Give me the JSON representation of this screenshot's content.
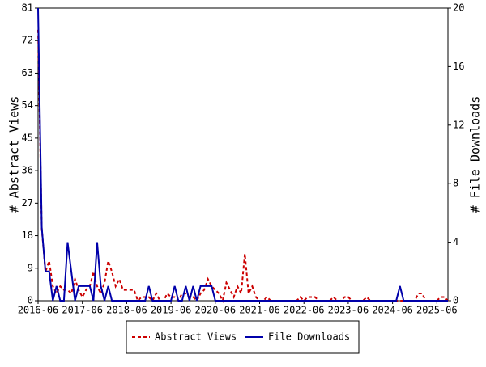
{
  "chart_data": {
    "type": "line",
    "categories": [
      "2016-06",
      null,
      null,
      null,
      null,
      null,
      null,
      null,
      null,
      null,
      null,
      null,
      "2017-06",
      null,
      null,
      null,
      null,
      null,
      null,
      null,
      null,
      null,
      null,
      null,
      "2018-06",
      null,
      null,
      null,
      null,
      null,
      null,
      null,
      null,
      null,
      null,
      null,
      "2019-06",
      null,
      null,
      null,
      null,
      null,
      null,
      null,
      null,
      null,
      null,
      null,
      "2020-06",
      null,
      null,
      null,
      null,
      null,
      null,
      null,
      null,
      null,
      null,
      null,
      "2021-06",
      null,
      null,
      null,
      null,
      null,
      null,
      null,
      null,
      null,
      null,
      null,
      "2022-06",
      null,
      null,
      null,
      null,
      null,
      null,
      null,
      null,
      null,
      null,
      null,
      "2023-06",
      null,
      null,
      null,
      null,
      null,
      null,
      null,
      null,
      null,
      null,
      null,
      "2024-06",
      null,
      null,
      null,
      null,
      null,
      null,
      null,
      null,
      null,
      null,
      null,
      "2025-06",
      null,
      null,
      null
    ],
    "series": [
      {
        "name": "Abstract Views",
        "color": "#cc0000",
        "dash": true,
        "values": [
          75,
          20,
          8,
          11,
          4,
          2,
          4,
          3,
          3,
          2,
          6,
          3,
          1,
          3,
          4,
          8,
          4,
          2,
          5,
          11,
          8,
          4,
          6,
          3,
          3,
          3,
          3,
          0,
          1,
          1,
          1,
          0,
          2,
          0,
          0,
          2,
          1,
          1,
          0,
          2,
          2,
          1,
          1,
          0,
          2,
          3,
          6,
          4,
          3,
          2,
          0,
          5,
          3,
          1,
          4,
          2,
          13,
          2,
          4,
          1,
          0,
          0,
          1,
          0,
          0,
          0,
          0,
          0,
          0,
          0,
          0,
          1,
          0,
          1,
          1,
          1,
          0,
          0,
          0,
          0,
          1,
          0,
          0,
          1,
          1,
          0,
          0,
          0,
          0,
          1,
          0,
          0,
          0,
          0,
          0,
          0,
          0,
          0,
          0,
          0,
          0,
          0,
          0,
          2,
          2,
          0,
          0,
          0,
          0,
          1,
          1,
          0
        ]
      },
      {
        "name": "File Downloads",
        "color": "#0000aa",
        "dash": false,
        "axis": "y2",
        "values": [
          20,
          5,
          2,
          2,
          0,
          1,
          0,
          0,
          4,
          2,
          0,
          1,
          1,
          1,
          1,
          0,
          4,
          1,
          0,
          1,
          0,
          0,
          0,
          0,
          0,
          0,
          0,
          0,
          0,
          0,
          1,
          0,
          0,
          0,
          0,
          0,
          0,
          1,
          0,
          0,
          1,
          0,
          1,
          0,
          1,
          1,
          1,
          1,
          0,
          0,
          0,
          0,
          0,
          0,
          0,
          0,
          0,
          0,
          0,
          0,
          0,
          0,
          0,
          0,
          0,
          0,
          0,
          0,
          0,
          0,
          0,
          0,
          0,
          0,
          0,
          0,
          0,
          0,
          0,
          0,
          0,
          0,
          0,
          0,
          0,
          0,
          0,
          0,
          0,
          0,
          0,
          0,
          0,
          0,
          0,
          0,
          0,
          0,
          1,
          0,
          0,
          0,
          0,
          0,
          0,
          0,
          0,
          0,
          0,
          0,
          0,
          0
        ]
      }
    ],
    "ylabel": "# Abstract Views",
    "y2label": "# File Downloads",
    "ylim": [
      0,
      81
    ],
    "yticks": [
      0,
      9,
      18,
      27,
      36,
      45,
      54,
      63,
      72,
      81
    ],
    "y2lim": [
      0,
      20
    ],
    "y2ticks": [
      0,
      4,
      8,
      12,
      16,
      20
    ],
    "legend": "bottom"
  }
}
